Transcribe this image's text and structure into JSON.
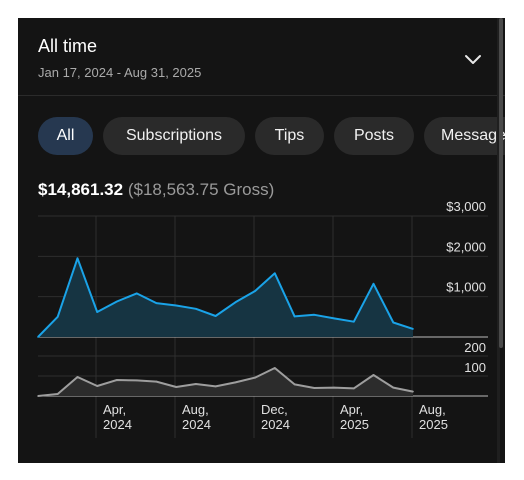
{
  "header": {
    "title": "All time",
    "date_range": "Jan 17, 2024 - Aug 31, 2025",
    "expand_icon": "chevron-down-icon"
  },
  "tabs": [
    {
      "label": "All",
      "active": true
    },
    {
      "label": "Subscriptions",
      "active": false
    },
    {
      "label": "Tips",
      "active": false
    },
    {
      "label": "Posts",
      "active": false
    },
    {
      "label": "Message",
      "active": false
    }
  ],
  "totals": {
    "net": "$14,861.32",
    "gross": "($18,563.75 Gross)"
  },
  "colors": {
    "earnings_line": "#1aa3e8",
    "earnings_fill": "#163442",
    "count_line": "#9e9e9e",
    "count_fill": "#2c2c2c",
    "background": "#141414"
  },
  "chart_data": [
    {
      "type": "area",
      "x_ticks": [
        "Apr,\n2024",
        "Aug,\n2024",
        "Dec,\n2024",
        "Apr,\n2025",
        "Aug,\n2025"
      ],
      "y_ticks": [
        "$3,000",
        "$2,000",
        "$1,000"
      ],
      "ylim": [
        0,
        3000
      ],
      "grid": true,
      "series": [
        {
          "values": [
            0,
            500,
            1950,
            620,
            880,
            1080,
            840,
            780,
            700,
            520,
            860,
            1140,
            1580,
            510,
            550,
            460,
            380,
            1320,
            360,
            200
          ]
        }
      ]
    },
    {
      "type": "area",
      "y_ticks": [
        "200",
        "100"
      ],
      "ylim": [
        0,
        250
      ],
      "grid": true,
      "series": [
        {
          "values": [
            0,
            10,
            95,
            50,
            80,
            78,
            72,
            45,
            60,
            48,
            68,
            92,
            140,
            58,
            40,
            42,
            38,
            105,
            42,
            22
          ]
        }
      ]
    }
  ]
}
